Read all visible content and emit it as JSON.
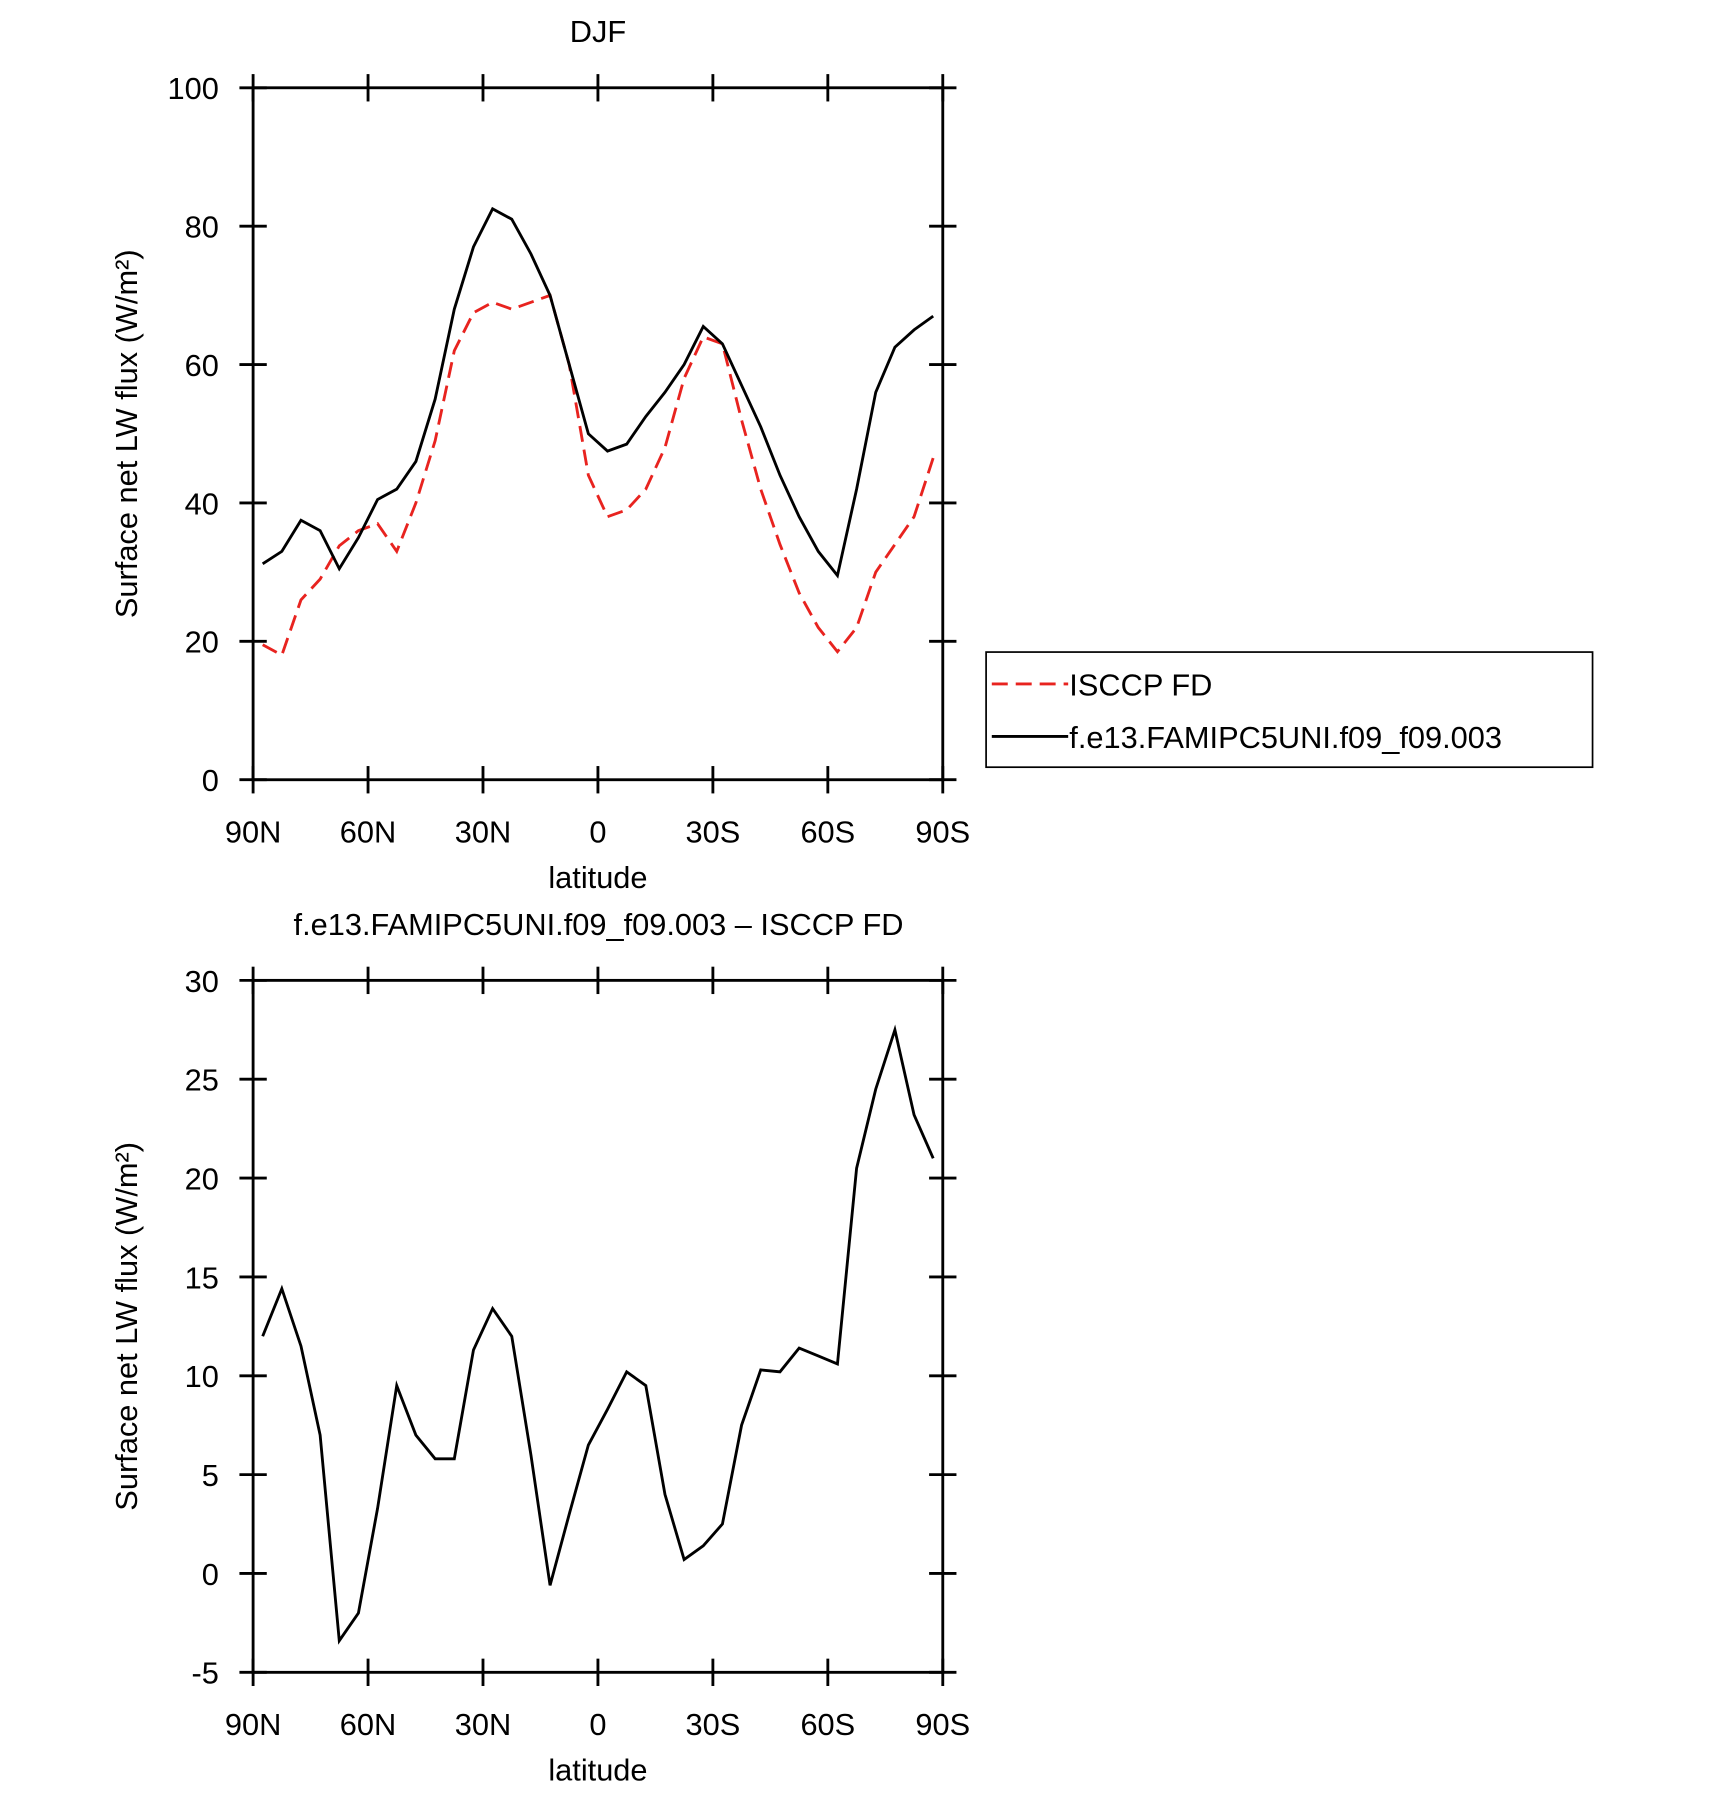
{
  "chart_data": [
    {
      "type": "line",
      "title": "DJF",
      "xlabel": "latitude",
      "ylabel": "Surface net LW flux (W/m²)",
      "x": [
        87.5,
        82.5,
        77.5,
        72.5,
        67.5,
        62.5,
        57.5,
        52.5,
        47.5,
        42.5,
        37.5,
        32.5,
        27.5,
        22.5,
        17.5,
        12.5,
        7.5,
        2.5,
        -2.5,
        -7.5,
        -12.5,
        -17.5,
        -22.5,
        -27.5,
        -32.5,
        -37.5,
        -42.5,
        -47.5,
        -52.5,
        -57.5,
        -62.5,
        -67.5,
        -72.5,
        -77.5,
        -82.5,
        -87.5
      ],
      "series": [
        {
          "name": "ISCCP FD",
          "color": "#e8231f",
          "dash": true,
          "values": [
            19.5,
            18,
            26,
            29,
            33.8,
            36,
            37,
            33,
            40,
            49,
            62,
            67.5,
            69,
            68,
            69,
            70,
            60,
            44,
            38,
            39,
            42,
            48,
            58,
            64,
            63,
            52,
            42,
            34,
            27,
            22,
            18.5,
            22,
            30,
            34,
            38,
            46.5
          ]
        },
        {
          "name": "f.e13.FAMIPC5UNI.f09_f09.003",
          "color": "#000000",
          "dash": false,
          "values": [
            31.2,
            33,
            37.5,
            36,
            30.5,
            35,
            40.5,
            42,
            46,
            55,
            68,
            77,
            82.5,
            81,
            76,
            70,
            60,
            50,
            47.5,
            48.5,
            52.5,
            56,
            60,
            65.5,
            63,
            57,
            51,
            44,
            38,
            33,
            29.5,
            42,
            56,
            62.5,
            65,
            67
          ]
        }
      ],
      "xlim": [
        90,
        -90
      ],
      "xticks": [
        {
          "value": 90,
          "label": "90N"
        },
        {
          "value": 60,
          "label": "60N"
        },
        {
          "value": 30,
          "label": "30N"
        },
        0,
        {
          "value": -30,
          "label": "30S"
        },
        {
          "value": -60,
          "label": "60S"
        },
        {
          "value": -90,
          "label": "90S"
        }
      ],
      "ylim": [
        0,
        100
      ],
      "yticks": [
        0,
        20,
        40,
        60,
        80,
        100
      ],
      "legend": "right"
    },
    {
      "type": "line",
      "title": "f.e13.FAMIPC5UNI.f09_f09.003 – ISCCP FD",
      "xlabel": "latitude",
      "ylabel": "Surface net LW flux (W/m²)",
      "x": [
        87.5,
        82.5,
        77.5,
        72.5,
        67.5,
        62.5,
        57.5,
        52.5,
        47.5,
        42.5,
        37.5,
        32.5,
        27.5,
        22.5,
        17.5,
        12.5,
        7.5,
        2.5,
        -2.5,
        -7.5,
        -12.5,
        -17.5,
        -22.5,
        -27.5,
        -32.5,
        -37.5,
        -42.5,
        -47.5,
        -52.5,
        -57.5,
        -62.5,
        -67.5,
        -72.5,
        -77.5,
        -82.5,
        -87.5
      ],
      "series": [
        {
          "color": "#000000",
          "dash": false,
          "values": [
            12,
            14.4,
            11.5,
            7,
            -3.4,
            -2,
            3.3,
            9.5,
            7,
            5.8,
            5.8,
            11.3,
            13.4,
            12,
            6,
            -0.6,
            3,
            6.5,
            8.3,
            10.2,
            9.5,
            4,
            0.7,
            1.4,
            2.5,
            7.5,
            10.3,
            10.2,
            11.4,
            11,
            10.6,
            20.5,
            24.5,
            27.5,
            23.2,
            21
          ]
        }
      ],
      "xlim": [
        90,
        -90
      ],
      "xticks": [
        {
          "value": 90,
          "label": "90N"
        },
        {
          "value": 60,
          "label": "60N"
        },
        {
          "value": 30,
          "label": "30N"
        },
        0,
        {
          "value": -30,
          "label": "30S"
        },
        {
          "value": -60,
          "label": "60S"
        },
        {
          "value": -90,
          "label": "90S"
        }
      ],
      "ylim": [
        -5,
        30
      ],
      "yticks": [
        -5,
        0,
        5,
        10,
        15,
        20,
        25,
        30
      ]
    }
  ]
}
